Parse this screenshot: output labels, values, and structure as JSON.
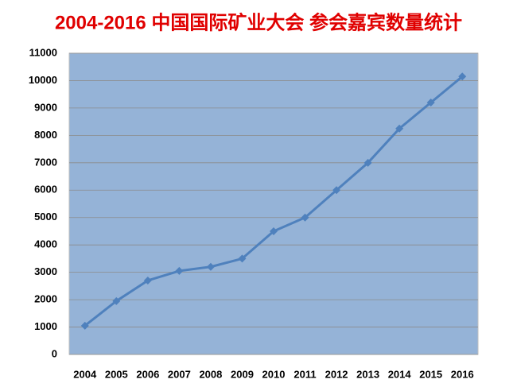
{
  "chart_data": {
    "type": "line",
    "title": "2004-2016 中国国际矿业大会 参会嘉宾数量统计",
    "categories": [
      "2004",
      "2005",
      "2006",
      "2007",
      "2008",
      "2009",
      "2010",
      "2011",
      "2012",
      "2013",
      "2014",
      "2015",
      "2016"
    ],
    "values": [
      1050,
      1950,
      2700,
      3050,
      3200,
      3500,
      4500,
      5000,
      6000,
      7000,
      8250,
      9200,
      10150
    ],
    "color": "#4f81bd",
    "ylim": [
      0,
      11000
    ],
    "yticks": [
      0,
      1000,
      2000,
      3000,
      4000,
      5000,
      6000,
      7000,
      8000,
      9000,
      10000,
      11000
    ],
    "grid": true
  }
}
